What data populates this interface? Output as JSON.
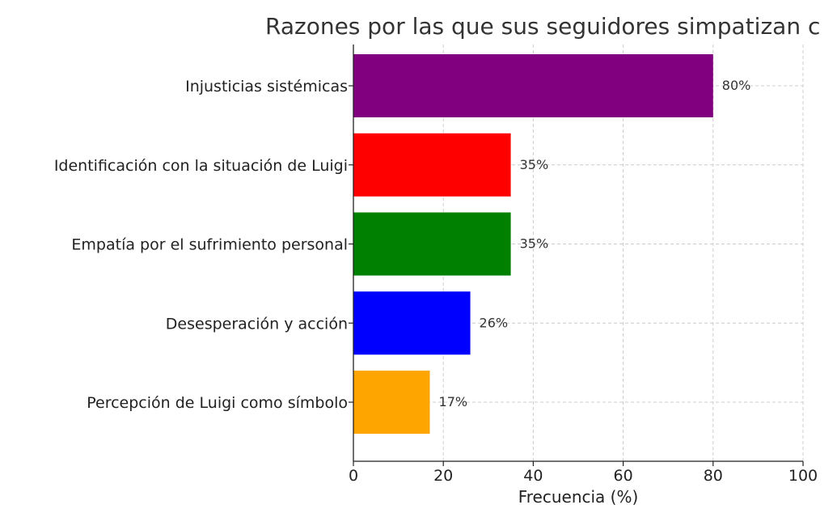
{
  "chart_data": {
    "type": "bar",
    "orientation": "horizontal",
    "title": "Razones por las que sus seguidores simpatizan c",
    "xlabel": "Frecuencia (%)",
    "ylabel": "",
    "xlim": [
      0,
      100
    ],
    "x_ticks": [
      "0",
      "20",
      "40",
      "60",
      "80",
      "100"
    ],
    "grid": true,
    "categories": [
      "Injusticias sistémicas",
      "Identificación con la situación de Luigi",
      "Empatía por el sufrimiento personal",
      "Desesperación y acción",
      "Percepción de Luigi como símbolo"
    ],
    "values": [
      80,
      35,
      35,
      26,
      17
    ],
    "data_labels": [
      "80%",
      "35%",
      "35%",
      "26%",
      "17%"
    ],
    "colors": [
      "#800080",
      "#ff0000",
      "#008000",
      "#0000ff",
      "#ffa500"
    ]
  }
}
